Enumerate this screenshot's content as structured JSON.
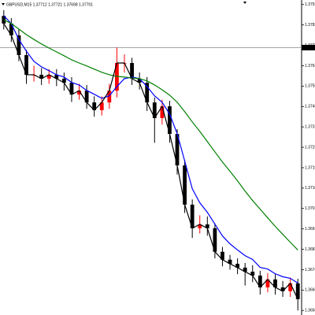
{
  "chart_data": {
    "type": "candlestick",
    "title": "GBPUSD,M15 1.37712 1.37721 1.37698 1.37701",
    "open": [
      1.3786,
      1.37826,
      1.37774,
      1.37687,
      1.376,
      1.376,
      1.37583,
      1.376,
      1.37583,
      1.37565,
      1.37513,
      1.3753,
      1.37478,
      1.37444,
      1.37478,
      1.3753,
      1.37652,
      1.37652,
      1.37583,
      1.37565,
      1.37478,
      1.37409,
      1.37461,
      1.37339,
      1.372,
      1.37027,
      1.36923,
      1.3694,
      1.36923,
      1.36819,
      1.36784,
      1.36766,
      1.36749,
      1.36731,
      1.36714,
      1.36662,
      1.36697,
      1.36662,
      1.36645,
      1.3668
    ],
    "high": [
      1.37885,
      1.3785,
      1.378,
      1.3771,
      1.3764,
      1.3763,
      1.37625,
      1.37625,
      1.3761,
      1.3759,
      1.3756,
      1.37555,
      1.37505,
      1.37505,
      1.3756,
      1.3772,
      1.3769,
      1.37675,
      1.3761,
      1.3759,
      1.375,
      1.3749,
      1.37485,
      1.3736,
      1.37225,
      1.3705,
      1.3698,
      1.36975,
      1.36945,
      1.3684,
      1.36805,
      1.3679,
      1.3677,
      1.3676,
      1.36735,
      1.36725,
      1.3672,
      1.3669,
      1.36705,
      1.367
    ],
    "low": [
      1.378,
      1.37745,
      1.3766,
      1.3756,
      1.3757,
      1.37555,
      1.3756,
      1.3755,
      1.3753,
      1.3748,
      1.3749,
      1.3745,
      1.37415,
      1.3742,
      1.3745,
      1.375,
      1.3761,
      1.37555,
      1.37535,
      1.3744,
      1.373,
      1.3738,
      1.373,
      1.3716,
      1.3699,
      1.3688,
      1.369,
      1.3689,
      1.3679,
      1.36755,
      1.3674,
      1.3672,
      1.3667,
      1.36685,
      1.3663,
      1.3664,
      1.3663,
      1.3662,
      1.3662,
      1.3656
    ],
    "close": [
      1.37826,
      1.37774,
      1.37687,
      1.376,
      1.376,
      1.37583,
      1.376,
      1.37583,
      1.37565,
      1.37513,
      1.3753,
      1.37478,
      1.37444,
      1.37478,
      1.3753,
      1.37652,
      1.37652,
      1.37583,
      1.37565,
      1.37478,
      1.37409,
      1.37461,
      1.37339,
      1.372,
      1.37027,
      1.36923,
      1.3694,
      1.36923,
      1.36819,
      1.36784,
      1.36766,
      1.36749,
      1.36731,
      1.36714,
      1.36662,
      1.36697,
      1.36662,
      1.36645,
      1.3668,
      1.3661
    ],
    "up_color": "#ff0000",
    "down_color": "#000000",
    "close_line": true,
    "close_line_color": "#000000",
    "series": [
      {
        "color": "#0000ff",
        "values": [
          1.37861,
          1.37826,
          1.37756,
          1.37704,
          1.37659,
          1.37635,
          1.37618,
          1.376,
          1.3759,
          1.37566,
          1.37555,
          1.37531,
          1.37514,
          1.37496,
          1.37507,
          1.37548,
          1.37583,
          1.3759,
          1.37583,
          1.37548,
          1.37507,
          1.37479,
          1.37427,
          1.3734,
          1.37219,
          1.37097,
          1.37035,
          1.36993,
          1.36941,
          1.36889,
          1.36854,
          1.36827,
          1.36802,
          1.36785,
          1.3675,
          1.36743,
          1.36722,
          1.36709,
          1.36702,
          1.36681
        ]
      },
      {
        "color": "#008000",
        "values": [
          1.37843,
          1.37826,
          1.37802,
          1.37777,
          1.37756,
          1.37736,
          1.37718,
          1.37701,
          1.37684,
          1.37666,
          1.37652,
          1.37639,
          1.37625,
          1.37611,
          1.376,
          1.37593,
          1.3759,
          1.37586,
          1.37583,
          1.37573,
          1.37555,
          1.37534,
          1.3751,
          1.37479,
          1.37437,
          1.37392,
          1.3735,
          1.37305,
          1.3726,
          1.37215,
          1.37174,
          1.37132,
          1.37087,
          1.37045,
          1.37007,
          1.36969,
          1.36931,
          1.36896,
          1.36861,
          1.36827
        ]
      }
    ],
    "current_price": 1.3772,
    "ylim": [
      1.3654,
      1.3793
    ],
    "yticks": [
      1.3791,
      1.3782,
      1.3773,
      1.3764,
      1.3755,
      1.3746,
      1.3737,
      1.3728,
      1.3719,
      {
        "value": 1.371,
        "label": "1.3710"
      },
      1.3701,
      1.3692,
      1.3683,
      1.3674,
      1.3665,
      1.3656
    ]
  }
}
